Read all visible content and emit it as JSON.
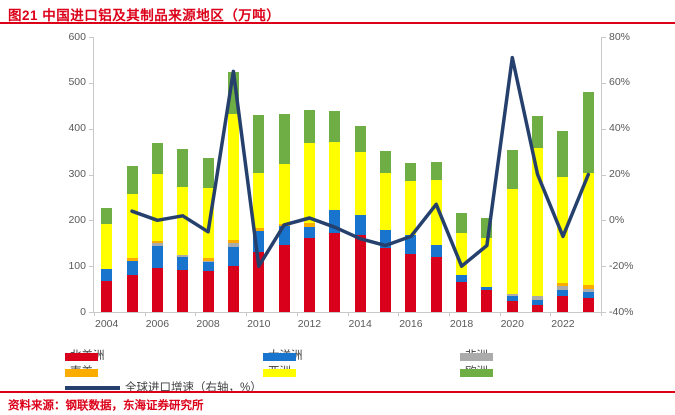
{
  "title": "图21  中国进口铝及其制品来源地区（万吨）",
  "source": "资料来源：钢联数据，东海证券研究所",
  "colors": {
    "accent_red": "#dc0019",
    "axis_text": "#595959",
    "axis_line": "#c9c9c9"
  },
  "chart_data": {
    "type": "combo stacked-bar + line",
    "title": "中国进口铝及其制品来源地区（万吨）",
    "categories": [
      "2004",
      "2005",
      "2006",
      "2007",
      "2008",
      "2009",
      "2010",
      "2011",
      "2012",
      "2013",
      "2014",
      "2015",
      "2016",
      "2017",
      "2018",
      "2019",
      "2020",
      "2021",
      "2022",
      "2023"
    ],
    "x_tick_labels": [
      "2004",
      "2006",
      "2008",
      "2010",
      "2012",
      "2014",
      "2016",
      "2018",
      "2020",
      "2022"
    ],
    "stack_order_note": "series listed bottom-to-top as stacked in the bars",
    "series": [
      {
        "name": "北美洲",
        "color": "#d9001b",
        "values": [
          68,
          80,
          96,
          92,
          89,
          101,
          130,
          147,
          161,
          172,
          168,
          139,
          126,
          121,
          66,
          48,
          25,
          15,
          35,
          30
        ]
      },
      {
        "name": "大洋洲",
        "color": "#1874cd",
        "values": [
          25,
          31,
          49,
          28,
          20,
          41,
          47,
          41,
          25,
          51,
          44,
          40,
          42,
          25,
          14,
          7,
          10,
          12,
          12,
          14
        ]
      },
      {
        "name": "非洲",
        "color": "#ababab",
        "values": [
          0,
          0,
          5,
          4,
          3,
          8,
          0,
          0,
          0,
          0,
          0,
          0,
          0,
          0,
          0,
          0,
          5,
          8,
          9,
          7
        ]
      },
      {
        "name": "南美",
        "color": "#fbac00",
        "values": [
          0,
          6,
          6,
          0,
          5,
          7,
          6,
          3,
          9,
          0,
          0,
          0,
          0,
          0,
          0,
          0,
          0,
          0,
          7,
          7
        ]
      },
      {
        "name": "亚洲",
        "color": "#ffff00",
        "values": [
          100,
          140,
          145,
          149,
          153,
          274,
          120,
          131,
          173,
          149,
          138,
          125,
          118,
          142,
          92,
          107,
          228,
          322,
          232,
          245
        ]
      },
      {
        "name": "欧洲",
        "color": "#6fae44",
        "values": [
          35,
          62,
          67,
          82,
          66,
          92,
          127,
          110,
          73,
          67,
          55,
          48,
          40,
          40,
          45,
          44,
          85,
          71,
          100,
          176
        ]
      }
    ],
    "line_series": {
      "name": "全球进口增速（右轴，%）",
      "color": "#25406d",
      "axis": "right",
      "values": [
        null,
        4,
        0,
        2,
        -5,
        65,
        -20,
        -2,
        1,
        -3,
        -8,
        -11,
        -7,
        7,
        -20,
        -11,
        71,
        20,
        -7,
        20
      ]
    },
    "left_axis": {
      "min": 0,
      "max": 600,
      "step": 100,
      "ticks": [
        "0",
        "100",
        "200",
        "300",
        "400",
        "500",
        "600"
      ]
    },
    "right_axis": {
      "min": -40,
      "max": 80,
      "step": 20,
      "ticks": [
        "-40%",
        "-20%",
        "0%",
        "20%",
        "40%",
        "60%",
        "80%"
      ]
    },
    "grid": "off",
    "legend_position": "bottom"
  },
  "legend": {
    "items": [
      {
        "label": "北美洲",
        "color": "#d9001b",
        "type": "bar",
        "col": 0,
        "row": 0
      },
      {
        "label": "大洋洲",
        "color": "#1874cd",
        "type": "bar",
        "col": 1,
        "row": 0
      },
      {
        "label": "非洲",
        "color": "#ababab",
        "type": "bar",
        "col": 2,
        "row": 0
      },
      {
        "label": "南美",
        "color": "#fbac00",
        "type": "bar",
        "col": 0,
        "row": 1
      },
      {
        "label": "亚洲",
        "color": "#ffff00",
        "type": "bar",
        "col": 1,
        "row": 1
      },
      {
        "label": "欧洲",
        "color": "#6fae44",
        "type": "bar",
        "col": 2,
        "row": 1
      },
      {
        "label": "全球进口增速（右轴，%）",
        "color": "#25406d",
        "type": "line",
        "col": 0,
        "row": 2
      }
    ]
  }
}
